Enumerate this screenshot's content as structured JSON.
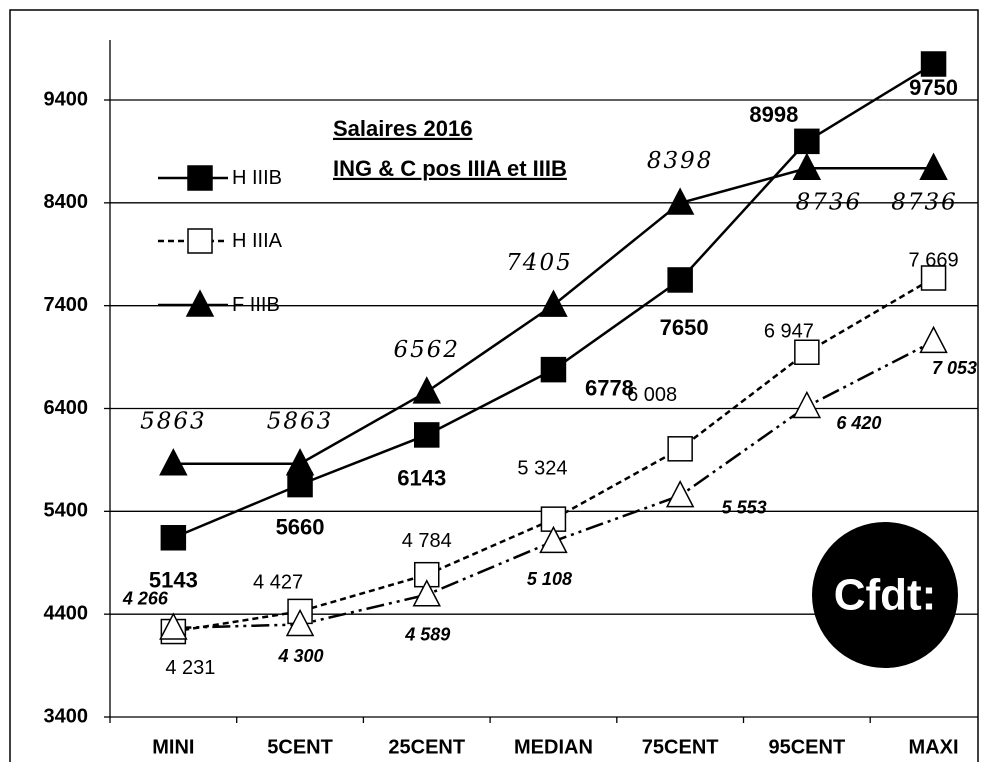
{
  "chart_data": {
    "type": "line",
    "title": "Salaires 2016",
    "subtitle": "ING & C pos IIIA et IIIB",
    "logo": "Cfdt:",
    "categories": [
      "MINI",
      "5CENT",
      "25CENT",
      "MEDIAN",
      "75CENT",
      "95CENT",
      "MAXI"
    ],
    "ylim": [
      3400,
      9400
    ],
    "yticks": [
      3400,
      4400,
      5400,
      6400,
      7400,
      8400,
      9400
    ],
    "grid": true,
    "legend": "upper left",
    "series": [
      {
        "name": "H IIIB",
        "color": "#000000",
        "values": [
          5143,
          5660,
          6143,
          6778,
          7650,
          8998,
          9750
        ]
      },
      {
        "name": "H IIIA",
        "color": "#000000",
        "values": [
          4231,
          4427,
          4784,
          5324,
          6008,
          6947,
          7669
        ],
        "value_labels": [
          "4 231",
          "4 427",
          "4 784",
          "5 324",
          "6 008",
          "6 947",
          "7 669"
        ]
      },
      {
        "name": "F IIIB",
        "color": "#000000",
        "values": [
          5863,
          5863,
          6562,
          7405,
          8398,
          8736,
          8736
        ]
      },
      {
        "color": "#000000",
        "values": [
          4266,
          4300,
          4589,
          5108,
          5553,
          6420,
          7053
        ],
        "value_labels": [
          "4 266",
          "4 300",
          "4 589",
          "5 108",
          "5 553",
          "6 420",
          "7 053"
        ]
      }
    ]
  }
}
